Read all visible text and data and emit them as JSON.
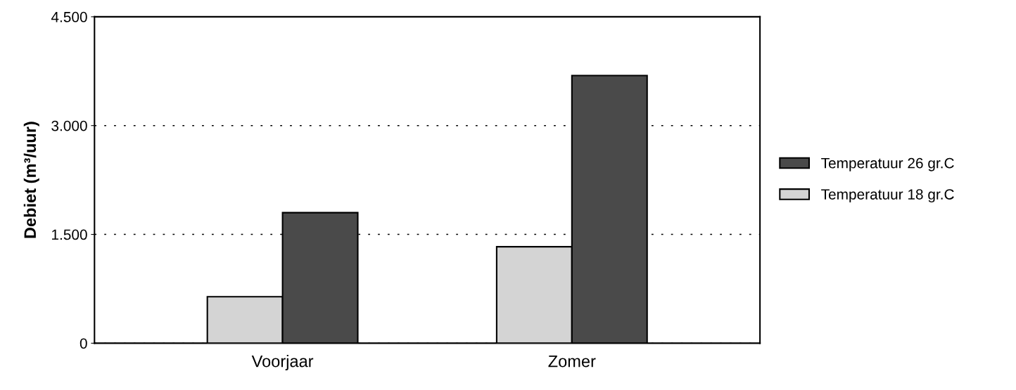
{
  "chart_data": {
    "type": "bar",
    "ylabel": "Debiet (m³/uur)",
    "categories": [
      "Voorjaar",
      "Zomer"
    ],
    "series": [
      {
        "name": "Temperatuur 18 gr.C",
        "color": "#d4d4d4",
        "values": [
          640,
          1330
        ]
      },
      {
        "name": "Temperatuur 26 gr.C",
        "color": "#4a4a4a",
        "values": [
          1800,
          3690
        ]
      }
    ],
    "ylim": [
      0,
      4500
    ],
    "yticks": [
      0,
      {
        "value": 1500,
        "label": "1.500"
      },
      {
        "value": 3000,
        "label": "3.000"
      },
      {
        "value": 4500,
        "label": "4.500"
      }
    ],
    "grid": "y",
    "legend": "right"
  }
}
